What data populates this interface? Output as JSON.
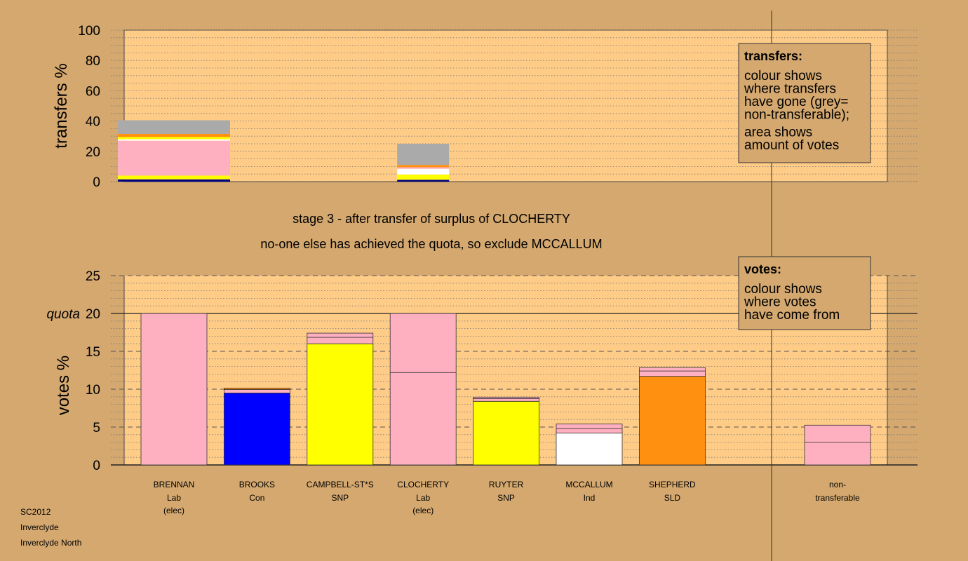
{
  "colors": {
    "background": "#d4a86f",
    "plot_bg": "#ffcc88",
    "legend_bg": "#d4a86f",
    "Lab": "#ffb0c0",
    "Con": "#0000ff",
    "SNP": "#ffff00",
    "Ind": "#ffffff",
    "SLD": "#ff9010",
    "nontransferable": "#aaaaaa",
    "Lab2": "#ffa0b0",
    "navy": "#000080"
  },
  "stage_text": {
    "line1": "stage 3 - after transfer of surplus of CLOCHERTY",
    "line2": "no-one else has achieved the quota, so exclude MCCALLUM"
  },
  "footer": {
    "line1": "SC2012",
    "line2": "Inverclyde",
    "line3": "Inverclyde North"
  },
  "legend_transfers": {
    "title": "transfers:",
    "lines": [
      "colour shows",
      "where transfers",
      "have gone (grey=",
      "non-transferable);",
      "area shows",
      "amount of votes"
    ]
  },
  "legend_votes": {
    "title": "votes:",
    "lines": [
      "colour shows",
      "where votes",
      "have come from"
    ]
  },
  "chart_data": [
    {
      "type": "bar",
      "id": "transfers",
      "ylabel": "transfers %",
      "ylim": [
        0,
        100
      ],
      "yticks": [
        0,
        20,
        40,
        60,
        80,
        100
      ],
      "grid": true,
      "bars": [
        {
          "slot": 0,
          "wide": true,
          "segments": [
            {
              "color": "navy",
              "value": 1.5
            },
            {
              "color": "SNP",
              "value": 2.5
            },
            {
              "color": "Lab",
              "value": 23
            },
            {
              "color": "Ind",
              "value": 1
            },
            {
              "color": "SNP",
              "value": 1.5
            },
            {
              "color": "SLD",
              "value": 2
            },
            {
              "color": "nontransferable",
              "value": 9
            }
          ]
        },
        {
          "slot": 3,
          "wide": false,
          "segments": [
            {
              "color": "navy",
              "value": 1.2
            },
            {
              "color": "SNP",
              "value": 3.5
            },
            {
              "color": "Ind",
              "value": 3.8
            },
            {
              "color": "Lab",
              "value": 1
            },
            {
              "color": "SLD",
              "value": 1.5
            },
            {
              "color": "nontransferable",
              "value": 14
            }
          ]
        }
      ]
    },
    {
      "type": "bar",
      "id": "votes",
      "ylabel": "votes %",
      "ylim": [
        0,
        25
      ],
      "yticks": [
        0,
        5,
        10,
        15,
        20,
        25
      ],
      "quota": 20,
      "quota_label": "quota",
      "candidates": [
        {
          "name": "BRENNAN",
          "party": "Lab",
          "note": "(elec)",
          "segments": [
            {
              "color": "Lab",
              "value": 20
            }
          ]
        },
        {
          "name": "BROOKS",
          "party": "Con",
          "note": "",
          "segments": [
            {
              "color": "Con",
              "value": 9.5
            },
            {
              "color": "Lab",
              "value": 0.45
            },
            {
              "color": "SLD",
              "value": 0.2
            }
          ]
        },
        {
          "name": "CAMPBELL-ST*S",
          "party": "SNP",
          "note": "",
          "segments": [
            {
              "color": "SNP",
              "value": 16
            },
            {
              "color": "Lab",
              "value": 0.85
            },
            {
              "color": "Lab",
              "value": 0.55
            }
          ]
        },
        {
          "name": "CLOCHERTY",
          "party": "Lab",
          "note": "(elec)",
          "segments": [
            {
              "color": "Lab",
              "value": 12.2
            },
            {
              "color": "Lab",
              "value": 7.8
            }
          ]
        },
        {
          "name": "RUYTER",
          "party": "SNP",
          "note": "",
          "segments": [
            {
              "color": "SNP",
              "value": 8.4
            },
            {
              "color": "Lab",
              "value": 0.35
            },
            {
              "color": "Lab",
              "value": 0.2
            }
          ]
        },
        {
          "name": "MCCALLUM",
          "party": "Ind",
          "note": "",
          "segments": [
            {
              "color": "Ind",
              "value": 4.2
            },
            {
              "color": "Lab",
              "value": 0.6
            },
            {
              "color": "Lab",
              "value": 0.6
            }
          ]
        },
        {
          "name": "SHEPHERD",
          "party": "SLD",
          "note": "",
          "segments": [
            {
              "color": "SLD",
              "value": 11.7
            },
            {
              "color": "Lab",
              "value": 0.7
            },
            {
              "color": "Lab",
              "value": 0.45
            }
          ]
        }
      ],
      "nontransferable": {
        "label_line1": "non-",
        "label_line2": "transferable",
        "segments": [
          {
            "color": "Lab",
            "value": 3
          },
          {
            "color": "Lab",
            "value": 2.25
          }
        ]
      }
    }
  ]
}
